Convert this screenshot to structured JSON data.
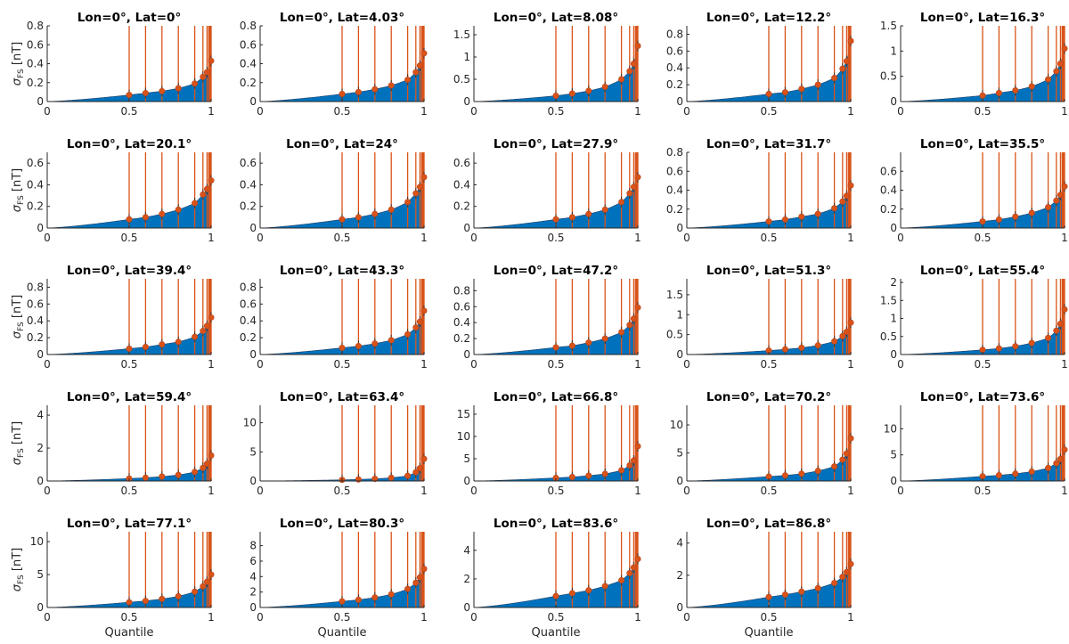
{
  "figure": {
    "xlabel": "Quantile",
    "ylabel": "σ",
    "ylabel_sub": "FS",
    "ylabel_unit": "[nT]",
    "colors": {
      "area": "#0072BD",
      "line": "#D95319",
      "marker": "#D95319",
      "errorbar": "#D95319",
      "axis": "#262626"
    }
  },
  "chart_data": [
    {
      "type": "area",
      "title": "Lon=0°, Lat=0°",
      "ylim": [
        0,
        0.8
      ],
      "yticks": [
        0,
        0.2,
        0.4,
        0.6,
        0.8
      ],
      "ytick_labels": [
        "0",
        "0.2",
        "0.4",
        "0.6",
        "0.8"
      ],
      "xticks": [
        0,
        0.5,
        1
      ],
      "xtick_labels": [
        "0",
        "0.5",
        "1"
      ],
      "x": [
        0.5,
        0.6,
        0.7,
        0.8,
        0.9,
        0.95,
        0.975,
        1
      ],
      "values": [
        0.07,
        0.09,
        0.11,
        0.14,
        0.19,
        0.26,
        0.31,
        0.43
      ]
    },
    {
      "type": "area",
      "title": "Lon=0°, Lat=4.03°",
      "ylim": [
        0,
        0.8
      ],
      "yticks": [
        0,
        0.2,
        0.4,
        0.6,
        0.8
      ],
      "ytick_labels": [
        "0",
        "0.2",
        "0.4",
        "0.6",
        "0.8"
      ],
      "xticks": [
        0,
        0.5,
        1
      ],
      "xtick_labels": [
        "0",
        "0.5",
        "1"
      ],
      "x": [
        0.5,
        0.6,
        0.7,
        0.8,
        0.9,
        0.95,
        0.975,
        1
      ],
      "values": [
        0.08,
        0.1,
        0.13,
        0.17,
        0.23,
        0.31,
        0.38,
        0.51
      ]
    },
    {
      "type": "area",
      "title": "Lon=0°, Lat=8.08°",
      "ylim": [
        0,
        1.7
      ],
      "yticks": [
        0,
        0.5,
        1,
        1.5
      ],
      "ytick_labels": [
        "0",
        "0.5",
        "1",
        "1.5"
      ],
      "xticks": [
        0,
        0.5,
        1
      ],
      "xtick_labels": [
        "0",
        "0.5",
        "1"
      ],
      "x": [
        0.5,
        0.6,
        0.7,
        0.8,
        0.9,
        0.95,
        0.975,
        1
      ],
      "values": [
        0.13,
        0.18,
        0.24,
        0.33,
        0.5,
        0.68,
        0.85,
        1.25
      ]
    },
    {
      "type": "area",
      "title": "Lon=0°, Lat=12.2°",
      "ylim": [
        0,
        0.9
      ],
      "yticks": [
        0,
        0.2,
        0.4,
        0.6,
        0.8
      ],
      "ytick_labels": [
        "0",
        "0.2",
        "0.4",
        "0.6",
        "0.8"
      ],
      "xticks": [
        0,
        0.5,
        1
      ],
      "xtick_labels": [
        "0",
        "0.5",
        "1"
      ],
      "x": [
        0.5,
        0.6,
        0.7,
        0.8,
        0.9,
        0.95,
        0.975,
        1
      ],
      "values": [
        0.09,
        0.11,
        0.15,
        0.2,
        0.28,
        0.39,
        0.48,
        0.72
      ]
    },
    {
      "type": "area",
      "title": "Lon=0°, Lat=16.3°",
      "ylim": [
        0,
        1.5
      ],
      "yticks": [
        0,
        0.5,
        1,
        1.5
      ],
      "ytick_labels": [
        "0",
        "0.5",
        "1",
        "1.5"
      ],
      "xticks": [
        0,
        0.5,
        1
      ],
      "xtick_labels": [
        "0",
        "0.5",
        "1"
      ],
      "x": [
        0.5,
        0.6,
        0.7,
        0.8,
        0.9,
        0.95,
        0.975,
        1
      ],
      "values": [
        0.12,
        0.17,
        0.22,
        0.3,
        0.44,
        0.6,
        0.75,
        1.05
      ]
    },
    {
      "type": "area",
      "title": "Lon=0°, Lat=20.1°",
      "ylim": [
        0,
        0.7
      ],
      "yticks": [
        0,
        0.2,
        0.4,
        0.6
      ],
      "ytick_labels": [
        "0",
        "0.2",
        "0.4",
        "0.6"
      ],
      "xticks": [
        0,
        0.5,
        1
      ],
      "xtick_labels": [
        "0",
        "0.5",
        "1"
      ],
      "x": [
        0.5,
        0.6,
        0.7,
        0.8,
        0.9,
        0.95,
        0.975,
        1
      ],
      "values": [
        0.08,
        0.1,
        0.13,
        0.17,
        0.23,
        0.31,
        0.36,
        0.44
      ]
    },
    {
      "type": "area",
      "title": "Lon=0°, Lat=24°",
      "ylim": [
        0,
        0.7
      ],
      "yticks": [
        0,
        0.2,
        0.4,
        0.6
      ],
      "ytick_labels": [
        "0",
        "0.2",
        "0.4",
        "0.6"
      ],
      "xticks": [
        0,
        0.5,
        1
      ],
      "xtick_labels": [
        "0",
        "0.5",
        "1"
      ],
      "x": [
        0.5,
        0.6,
        0.7,
        0.8,
        0.9,
        0.95,
        0.975,
        1
      ],
      "values": [
        0.08,
        0.1,
        0.13,
        0.17,
        0.24,
        0.32,
        0.38,
        0.47
      ]
    },
    {
      "type": "area",
      "title": "Lon=0°, Lat=27.9°",
      "ylim": [
        0,
        0.7
      ],
      "yticks": [
        0,
        0.2,
        0.4,
        0.6
      ],
      "ytick_labels": [
        "0",
        "0.2",
        "0.4",
        "0.6"
      ],
      "xticks": [
        0,
        0.5,
        1
      ],
      "xtick_labels": [
        "0",
        "0.5",
        "1"
      ],
      "x": [
        0.5,
        0.6,
        0.7,
        0.8,
        0.9,
        0.95,
        0.975,
        1
      ],
      "values": [
        0.08,
        0.1,
        0.13,
        0.17,
        0.24,
        0.32,
        0.38,
        0.47
      ]
    },
    {
      "type": "area",
      "title": "Lon=0°, Lat=31.7°",
      "ylim": [
        0,
        0.8
      ],
      "yticks": [
        0,
        0.2,
        0.4,
        0.6,
        0.8
      ],
      "ytick_labels": [
        "0",
        "0.2",
        "0.4",
        "0.6",
        "0.8"
      ],
      "xticks": [
        0,
        0.5,
        1
      ],
      "xtick_labels": [
        "0",
        "0.5",
        "1"
      ],
      "x": [
        0.5,
        0.6,
        0.7,
        0.8,
        0.9,
        0.95,
        0.975,
        1
      ],
      "values": [
        0.07,
        0.09,
        0.12,
        0.15,
        0.21,
        0.28,
        0.34,
        0.45
      ]
    },
    {
      "type": "area",
      "title": "Lon=0°, Lat=35.5°",
      "ylim": [
        0,
        0.8
      ],
      "yticks": [
        0,
        0.2,
        0.4,
        0.6
      ],
      "ytick_labels": [
        "0",
        "0.2",
        "0.4",
        "0.6"
      ],
      "xticks": [
        0,
        0.5,
        1
      ],
      "xtick_labels": [
        "0",
        "0.5",
        "1"
      ],
      "x": [
        0.5,
        0.6,
        0.7,
        0.8,
        0.9,
        0.95,
        0.975,
        1
      ],
      "values": [
        0.07,
        0.09,
        0.12,
        0.16,
        0.22,
        0.29,
        0.35,
        0.44
      ]
    },
    {
      "type": "area",
      "title": "Lon=0°, Lat=39.4°",
      "ylim": [
        0,
        0.9
      ],
      "yticks": [
        0,
        0.2,
        0.4,
        0.6,
        0.8
      ],
      "ytick_labels": [
        "0",
        "0.2",
        "0.4",
        "0.6",
        "0.8"
      ],
      "xticks": [
        0,
        0.5,
        1
      ],
      "xtick_labels": [
        "0",
        "0.5",
        "1"
      ],
      "x": [
        0.5,
        0.6,
        0.7,
        0.8,
        0.9,
        0.95,
        0.975,
        1
      ],
      "values": [
        0.07,
        0.09,
        0.12,
        0.15,
        0.21,
        0.28,
        0.34,
        0.44
      ]
    },
    {
      "type": "area",
      "title": "Lon=0°, Lat=43.3°",
      "ylim": [
        0,
        0.9
      ],
      "yticks": [
        0,
        0.2,
        0.4,
        0.6,
        0.8
      ],
      "ytick_labels": [
        "0",
        "0.2",
        "0.4",
        "0.6",
        "0.8"
      ],
      "xticks": [
        0,
        0.5,
        1
      ],
      "xtick_labels": [
        "0",
        "0.5",
        "1"
      ],
      "x": [
        0.5,
        0.6,
        0.7,
        0.8,
        0.9,
        0.95,
        0.975,
        1
      ],
      "values": [
        0.08,
        0.1,
        0.13,
        0.17,
        0.24,
        0.32,
        0.39,
        0.52
      ]
    },
    {
      "type": "area",
      "title": "Lon=0°, Lat=47.2°",
      "ylim": [
        0,
        0.95
      ],
      "yticks": [
        0,
        0.2,
        0.4,
        0.6,
        0.8
      ],
      "ytick_labels": [
        "0",
        "0.2",
        "0.4",
        "0.6",
        "0.8"
      ],
      "xticks": [
        0,
        0.5,
        1
      ],
      "xtick_labels": [
        "0",
        "0.5",
        "1"
      ],
      "x": [
        0.5,
        0.6,
        0.7,
        0.8,
        0.9,
        0.95,
        0.975,
        1
      ],
      "values": [
        0.09,
        0.11,
        0.15,
        0.2,
        0.28,
        0.37,
        0.45,
        0.59
      ]
    },
    {
      "type": "area",
      "title": "Lon=0°, Lat=51.3°",
      "ylim": [
        0,
        1.9
      ],
      "yticks": [
        0,
        0.5,
        1,
        1.5
      ],
      "ytick_labels": [
        "0",
        "0.5",
        "1",
        "1.5"
      ],
      "xticks": [
        0,
        0.5,
        1
      ],
      "xtick_labels": [
        "0",
        "0.5",
        "1"
      ],
      "x": [
        0.5,
        0.6,
        0.7,
        0.8,
        0.9,
        0.95,
        0.975,
        1
      ],
      "values": [
        0.1,
        0.13,
        0.17,
        0.23,
        0.33,
        0.46,
        0.57,
        0.8
      ]
    },
    {
      "type": "area",
      "title": "Lon=0°, Lat=55.4°",
      "ylim": [
        0,
        2.1
      ],
      "yticks": [
        0,
        0.5,
        1,
        1.5,
        2
      ],
      "ytick_labels": [
        "0",
        "0.5",
        "1",
        "1.5",
        "2"
      ],
      "xticks": [
        0,
        0.5,
        1
      ],
      "xtick_labels": [
        "0",
        "0.5",
        "1"
      ],
      "x": [
        0.5,
        0.6,
        0.7,
        0.8,
        0.9,
        0.95,
        0.975,
        1
      ],
      "values": [
        0.13,
        0.17,
        0.23,
        0.32,
        0.46,
        0.66,
        0.85,
        1.25
      ]
    },
    {
      "type": "area",
      "title": "Lon=0°, Lat=59.4°",
      "ylim": [
        0,
        4.6
      ],
      "yticks": [
        0,
        2,
        4
      ],
      "ytick_labels": [
        "0",
        "2",
        "4"
      ],
      "xticks": [
        0,
        0.5,
        1
      ],
      "xtick_labels": [
        "0",
        "0.5",
        "1"
      ],
      "x": [
        0.5,
        0.6,
        0.7,
        0.8,
        0.9,
        0.95,
        0.975,
        1
      ],
      "values": [
        0.15,
        0.2,
        0.27,
        0.37,
        0.55,
        0.8,
        1.05,
        1.55
      ]
    },
    {
      "type": "area",
      "title": "Lon=0°, Lat=63.4°",
      "ylim": [
        0,
        13
      ],
      "yticks": [
        0,
        5,
        10
      ],
      "ytick_labels": [
        "0",
        "5",
        "10"
      ],
      "xticks": [
        0,
        0.5,
        1
      ],
      "xtick_labels": [
        "0",
        "0.5",
        "1"
      ],
      "x": [
        0.5,
        0.6,
        0.7,
        0.8,
        0.9,
        0.95,
        0.975,
        1
      ],
      "values": [
        0.2,
        0.27,
        0.38,
        0.55,
        0.9,
        1.5,
        2.2,
        3.8
      ]
    },
    {
      "type": "area",
      "title": "Lon=0°, Lat=66.8°",
      "ylim": [
        0,
        17
      ],
      "yticks": [
        0,
        5,
        10,
        15
      ],
      "ytick_labels": [
        "0",
        "5",
        "10",
        "15"
      ],
      "xticks": [
        0,
        0.5,
        1
      ],
      "xtick_labels": [
        "0",
        "0.5",
        "1"
      ],
      "x": [
        0.5,
        0.6,
        0.7,
        0.8,
        0.9,
        0.95,
        0.975,
        1
      ],
      "values": [
        0.7,
        0.9,
        1.2,
        1.6,
        2.4,
        3.5,
        4.6,
        7.8
      ]
    },
    {
      "type": "area",
      "title": "Lon=0°, Lat=70.2°",
      "ylim": [
        0,
        13.5
      ],
      "yticks": [
        0,
        5,
        10
      ],
      "ytick_labels": [
        "0",
        "5",
        "10"
      ],
      "xticks": [
        0,
        0.5,
        1
      ],
      "xtick_labels": [
        "0",
        "0.5",
        "1"
      ],
      "x": [
        0.5,
        0.6,
        0.7,
        0.8,
        0.9,
        0.95,
        0.975,
        1
      ],
      "values": [
        0.8,
        1.0,
        1.3,
        1.8,
        2.6,
        3.8,
        4.9,
        7.6
      ]
    },
    {
      "type": "area",
      "title": "Lon=0°, Lat=73.6°",
      "ylim": [
        0,
        14.5
      ],
      "yticks": [
        0,
        5,
        10
      ],
      "ytick_labels": [
        "0",
        "5",
        "10"
      ],
      "xticks": [
        0,
        0.5,
        1
      ],
      "xtick_labels": [
        "0",
        "0.5",
        "1"
      ],
      "x": [
        0.5,
        0.6,
        0.7,
        0.8,
        0.9,
        0.95,
        0.975,
        1
      ],
      "values": [
        0.9,
        1.1,
        1.4,
        1.8,
        2.5,
        3.4,
        4.2,
        6.0
      ]
    },
    {
      "type": "area",
      "title": "Lon=0°, Lat=77.1°",
      "ylim": [
        0,
        11.5
      ],
      "yticks": [
        0,
        5,
        10
      ],
      "ytick_labels": [
        "0",
        "5",
        "10"
      ],
      "xticks": [
        0,
        0.5,
        1
      ],
      "xtick_labels": [
        "0",
        "0.5",
        "1"
      ],
      "x": [
        0.5,
        0.6,
        0.7,
        0.8,
        0.9,
        0.95,
        0.975,
        1
      ],
      "values": [
        0.8,
        1.0,
        1.3,
        1.7,
        2.4,
        3.2,
        3.9,
        5.0
      ]
    },
    {
      "type": "area",
      "title": "Lon=0°, Lat=80.3°",
      "ylim": [
        0,
        9.8
      ],
      "yticks": [
        0,
        2,
        4,
        6,
        8
      ],
      "ytick_labels": [
        "0",
        "2",
        "4",
        "6",
        "8"
      ],
      "xticks": [
        0,
        0.5,
        1
      ],
      "xtick_labels": [
        "0",
        "0.5",
        "1"
      ],
      "x": [
        0.5,
        0.6,
        0.7,
        0.8,
        0.9,
        0.95,
        0.975,
        1
      ],
      "values": [
        0.8,
        1.0,
        1.3,
        1.7,
        2.4,
        3.2,
        3.9,
        5.0
      ]
    },
    {
      "type": "area",
      "title": "Lon=0°, Lat=83.6°",
      "ylim": [
        0,
        5.3
      ],
      "yticks": [
        0,
        2,
        4
      ],
      "ytick_labels": [
        "0",
        "2",
        "4"
      ],
      "xticks": [
        0,
        0.5,
        1
      ],
      "xtick_labels": [
        "0",
        "0.5",
        "1"
      ],
      "x": [
        0.5,
        0.6,
        0.7,
        0.8,
        0.9,
        0.95,
        0.975,
        1
      ],
      "values": [
        0.8,
        1.0,
        1.2,
        1.5,
        1.9,
        2.4,
        2.8,
        3.4
      ]
    },
    {
      "type": "area",
      "title": "Lon=0°, Lat=86.8°",
      "ylim": [
        0,
        4.7
      ],
      "yticks": [
        0,
        2,
        4
      ],
      "ytick_labels": [
        "0",
        "2",
        "4"
      ],
      "xticks": [
        0,
        0.5,
        1
      ],
      "xtick_labels": [
        "0",
        "0.5",
        "1"
      ],
      "x": [
        0.5,
        0.6,
        0.7,
        0.8,
        0.9,
        0.95,
        0.975,
        1
      ],
      "values": [
        0.65,
        0.8,
        0.98,
        1.2,
        1.52,
        1.9,
        2.2,
        2.7
      ]
    }
  ]
}
